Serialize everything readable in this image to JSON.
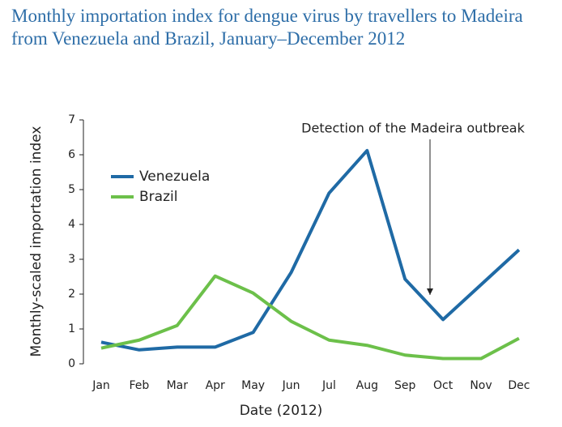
{
  "chart_data": {
    "type": "line",
    "title": "Monthly importation index for dengue virus by travellers to Madeira from Venezuela and Brazil, January–December 2012",
    "xlabel": "Date (2012)",
    "ylabel": "Monthly-scaled importation index",
    "annotation": "Detection of the Madeira outbreak",
    "categories": [
      "Jan",
      "Feb",
      "Mar",
      "Apr",
      "May",
      "Jun",
      "Jul",
      "Aug",
      "Sep",
      "Oct",
      "Nov",
      "Dec"
    ],
    "series": [
      {
        "name": "Venezuela",
        "color": "#1f6aa5",
        "values": [
          0.62,
          0.4,
          0.48,
          0.48,
          0.9,
          2.62,
          4.9,
          6.12,
          2.43,
          1.27,
          2.27,
          3.27
        ]
      },
      {
        "name": "Brazil",
        "color": "#6cc04a",
        "values": [
          0.45,
          0.68,
          1.1,
          2.52,
          2.03,
          1.22,
          0.68,
          0.53,
          0.25,
          0.15,
          0.15,
          0.73
        ]
      }
    ],
    "ylim": [
      0,
      7
    ],
    "yticks": [
      0,
      1,
      2,
      3,
      4,
      5,
      6,
      7
    ],
    "grid": false
  }
}
